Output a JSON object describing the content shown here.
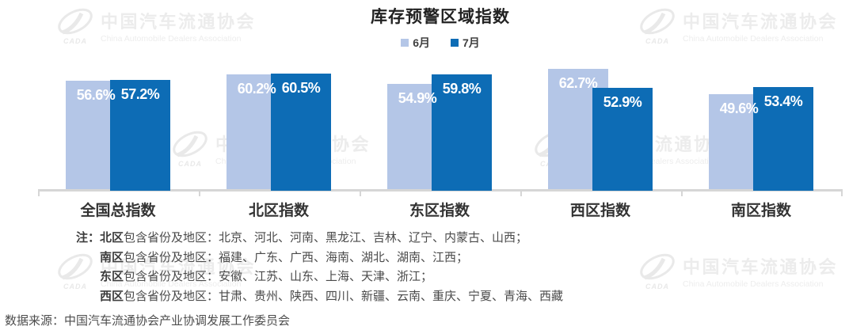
{
  "title": "库存预警区域指数",
  "legend": [
    {
      "label": "6月",
      "color": "#b4c6e7"
    },
    {
      "label": "7月",
      "color": "#0d6cb5"
    }
  ],
  "chart_data": {
    "type": "bar",
    "title": "库存预警区域指数",
    "categories": [
      "全国总指数",
      "北区指数",
      "东区指数",
      "西区指数",
      "南区指数"
    ],
    "series": [
      {
        "name": "6月",
        "color": "#b4c6e7",
        "values": [
          56.6,
          60.2,
          54.9,
          62.7,
          49.6
        ]
      },
      {
        "name": "7月",
        "color": "#0d6cb5",
        "values": [
          57.2,
          60.5,
          59.8,
          52.9,
          53.4
        ]
      }
    ],
    "value_format": "percent",
    "data_labels": [
      "56.6%",
      "57.2%",
      "60.2%",
      "60.5%",
      "54.9%",
      "59.8%",
      "62.7%",
      "52.9%",
      "49.6%",
      "53.4%"
    ],
    "xlabel": "",
    "ylabel": "",
    "ylim": [
      0,
      70
    ],
    "grid": false,
    "legend_position": "top",
    "axis_color": "#d6d6d6"
  },
  "notes": {
    "label": "注：",
    "lines": [
      {
        "bold": "北区",
        "text": "包含省份及地区：北京、河北、河南、黑龙江、吉林、辽宁、内蒙古、山西；"
      },
      {
        "bold": "南区",
        "text": "包含省份及地区：福建、广东、广西、海南、湖北、湖南、江西；"
      },
      {
        "bold": "东区",
        "text": "包含省份及地区：安徽、江苏、山东、上海、天津、浙江；"
      },
      {
        "bold": "西区",
        "text": "包含省份及地区：甘肃、贵州、陕西、四川、新疆、云南、重庆、宁夏、青海、西藏"
      }
    ]
  },
  "source": "数据来源：中国汽车流通协会产业协调发展工作委员会",
  "watermark": {
    "cn": "中国汽车流通协会",
    "en": "China Automobile Dealers Association",
    "logo_text": "CADA",
    "color": "#ececec"
  }
}
